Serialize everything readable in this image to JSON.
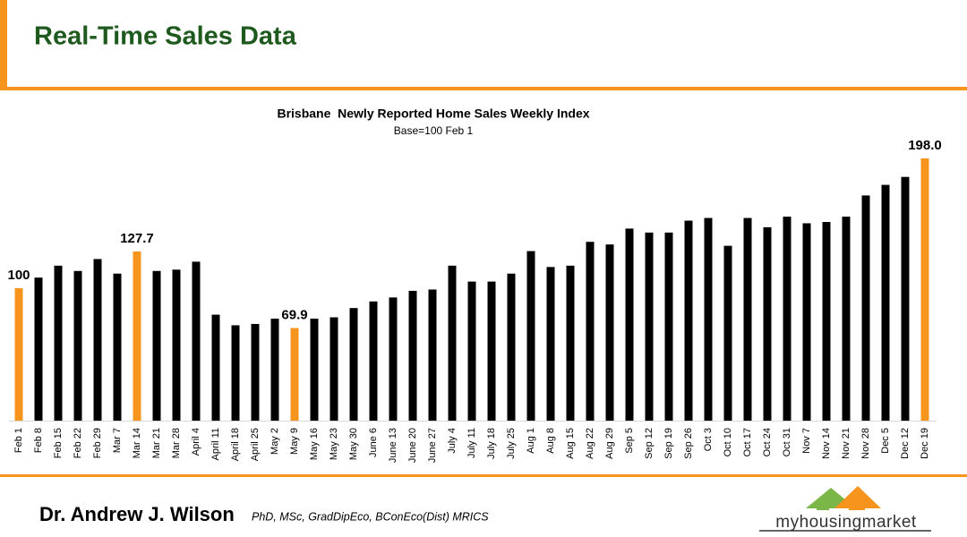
{
  "header": {
    "title": "Real-Time Sales Data"
  },
  "footer": {
    "name": "Dr. Andrew J. Wilson",
    "credentials": "PhD, MSc, GradDipEco, BConEco(Dist) MRICS",
    "logo": "myhousingmarket"
  },
  "chart_data": {
    "type": "bar",
    "title": "Brisbane  Newly Reported Home Sales Weekly Index",
    "subtitle": "Base=100 Feb 1",
    "categories": [
      "Feb 1",
      "Feb 8",
      "Feb 15",
      "Feb 22",
      "Feb 29",
      "Mar 7",
      "Mar 14",
      "Mar 21",
      "Mar 28",
      "April 4",
      "April 11",
      "April 18",
      "April 25",
      "May 2",
      "May 9",
      "May 16",
      "May 23",
      "May 30",
      "June 6",
      "June 13",
      "June 20",
      "June 27",
      "July 4",
      "July 11",
      "July 18",
      "July 25",
      "Aug 1",
      "Aug 8",
      "Aug 15",
      "Aug 22",
      "Aug 29",
      "Sep 5",
      "Sep 12",
      "Sep 19",
      "Sep 26",
      "Oct 3",
      "Oct 10",
      "Oct 17",
      "Oct 24",
      "Oct 31",
      "Nov 7",
      "Nov 14",
      "Nov 21",
      "Nov 28",
      "Dec 5",
      "Dec 12",
      "Dec 19"
    ],
    "values": [
      100,
      108,
      117,
      113,
      122,
      111,
      127.7,
      113,
      114,
      120,
      80,
      72,
      73,
      77,
      69.9,
      77,
      78,
      85,
      90,
      93,
      98,
      99,
      117,
      105,
      105,
      111,
      128,
      116,
      117,
      135,
      133,
      145,
      142,
      142,
      151,
      153,
      132,
      153,
      146,
      154,
      149,
      150,
      154,
      170,
      178,
      184,
      198
    ],
    "value_labels": [
      "100",
      null,
      null,
      null,
      null,
      null,
      "127.7",
      null,
      null,
      null,
      null,
      null,
      null,
      null,
      "69.9",
      null,
      null,
      null,
      null,
      null,
      null,
      null,
      null,
      null,
      null,
      null,
      null,
      null,
      null,
      null,
      null,
      null,
      null,
      null,
      null,
      null,
      null,
      null,
      null,
      null,
      null,
      null,
      null,
      null,
      null,
      null,
      "198.0"
    ],
    "color": "#000000",
    "highlight_color": "#f7941d",
    "ylim": [
      0,
      200
    ],
    "grid": false
  }
}
